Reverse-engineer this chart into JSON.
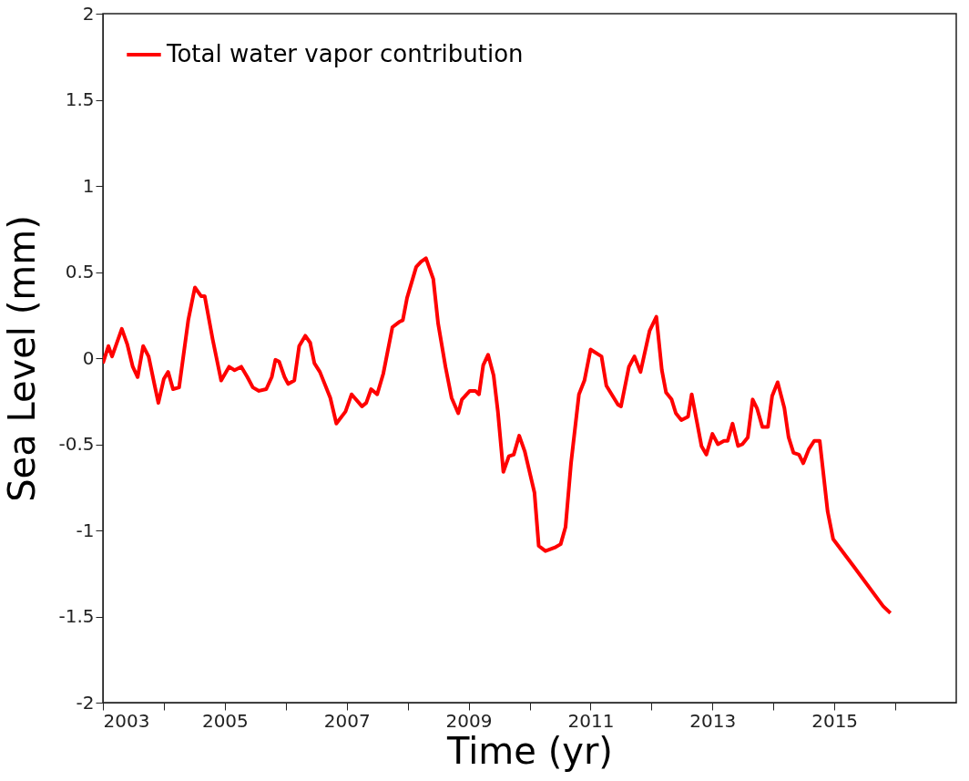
{
  "chart_data": {
    "type": "line",
    "xlabel": "Time (yr)",
    "ylabel": "Sea Level (mm)",
    "xlim": [
      2003,
      2017
    ],
    "xticks": [
      2003,
      {
        "value": 2004,
        "label": null
      },
      2005,
      {
        "value": 2006,
        "label": null
      },
      2007,
      {
        "value": 2008,
        "label": null
      },
      2009,
      {
        "value": 2010,
        "label": null
      },
      2011,
      {
        "value": 2012,
        "label": null
      },
      2013,
      {
        "value": 2014,
        "label": null
      },
      2015,
      {
        "value": 2016,
        "label": null
      }
    ],
    "ylim": [
      -2,
      2
    ],
    "yticks": [
      -2,
      -1.5,
      -1,
      -0.5,
      0,
      0.5,
      1,
      1.5,
      2
    ],
    "grid": false,
    "legend": "top left",
    "series": [
      {
        "name": "Total water vapor contribution",
        "color": "#ff0000",
        "x": [
          2003.0,
          2003.09,
          2003.15,
          2003.31,
          2003.4,
          2003.49,
          2003.57,
          2003.66,
          2003.75,
          2003.85,
          2003.91,
          2004.0,
          2004.07,
          2004.15,
          2004.25,
          2004.4,
          2004.48,
          2004.51,
          2004.61,
          2004.67,
          2004.8,
          2004.94,
          2005.07,
          2005.16,
          2005.27,
          2005.37,
          2005.46,
          2005.56,
          2005.68,
          2005.77,
          2005.83,
          2005.89,
          2005.98,
          2006.04,
          2006.14,
          2006.22,
          2006.32,
          2006.4,
          2006.47,
          2006.56,
          2006.73,
          2006.83,
          2006.98,
          2007.08,
          2007.25,
          2007.32,
          2007.4,
          2007.5,
          2007.6,
          2007.75,
          2007.86,
          2007.92,
          2007.99,
          2008.14,
          2008.22,
          2008.3,
          2008.42,
          2008.5,
          2008.62,
          2008.72,
          2008.83,
          2008.89,
          2009.02,
          2009.11,
          2009.17,
          2009.24,
          2009.32,
          2009.41,
          2009.48,
          2009.57,
          2009.66,
          2009.74,
          2009.83,
          2009.92,
          2010.08,
          2010.15,
          2010.26,
          2010.41,
          2010.51,
          2010.59,
          2010.68,
          2010.81,
          2010.9,
          2011.0,
          2011.18,
          2011.26,
          2011.45,
          2011.5,
          2011.63,
          2011.72,
          2011.82,
          2011.97,
          2012.08,
          2012.17,
          2012.24,
          2012.33,
          2012.4,
          2012.49,
          2012.6,
          2012.66,
          2012.82,
          2012.9,
          2013.0,
          2013.09,
          2013.19,
          2013.25,
          2013.33,
          2013.42,
          2013.49,
          2013.58,
          2013.66,
          2013.73,
          2013.82,
          2013.91,
          2013.98,
          2014.07,
          2014.18,
          2014.25,
          2014.33,
          2014.42,
          2014.49,
          2014.58,
          2014.67,
          2014.76,
          2014.89,
          2014.98,
          2015.32,
          2015.8,
          2015.92
        ],
        "values": [
          -0.03,
          0.07,
          0.01,
          0.17,
          0.08,
          -0.05,
          -0.11,
          0.07,
          0.01,
          -0.16,
          -0.26,
          -0.12,
          -0.08,
          -0.18,
          -0.17,
          0.22,
          0.36,
          0.41,
          0.36,
          0.36,
          0.11,
          -0.13,
          -0.05,
          -0.07,
          -0.05,
          -0.11,
          -0.17,
          -0.19,
          -0.18,
          -0.11,
          -0.01,
          -0.02,
          -0.11,
          -0.15,
          -0.13,
          0.07,
          0.13,
          0.09,
          -0.03,
          -0.08,
          -0.23,
          -0.38,
          -0.31,
          -0.21,
          -0.28,
          -0.26,
          -0.18,
          -0.21,
          -0.09,
          0.18,
          0.21,
          0.22,
          0.35,
          0.53,
          0.56,
          0.58,
          0.46,
          0.2,
          -0.05,
          -0.23,
          -0.32,
          -0.24,
          -0.19,
          -0.19,
          -0.21,
          -0.04,
          0.02,
          -0.1,
          -0.31,
          -0.66,
          -0.57,
          -0.56,
          -0.45,
          -0.54,
          -0.78,
          -1.09,
          -1.12,
          -1.1,
          -1.08,
          -0.98,
          -0.61,
          -0.21,
          -0.13,
          0.05,
          0.01,
          -0.16,
          -0.27,
          -0.28,
          -0.05,
          0.01,
          -0.08,
          0.16,
          0.24,
          -0.07,
          -0.2,
          -0.24,
          -0.32,
          -0.36,
          -0.34,
          -0.21,
          -0.51,
          -0.56,
          -0.44,
          -0.5,
          -0.48,
          -0.48,
          -0.38,
          -0.51,
          -0.5,
          -0.46,
          -0.24,
          -0.29,
          -0.4,
          -0.4,
          -0.22,
          -0.14,
          -0.29,
          -0.46,
          -0.55,
          -0.56,
          -0.61,
          -0.53,
          -0.48,
          -0.48,
          -0.89,
          -1.05,
          -1.21,
          -1.44,
          -1.48
        ]
      }
    ]
  }
}
